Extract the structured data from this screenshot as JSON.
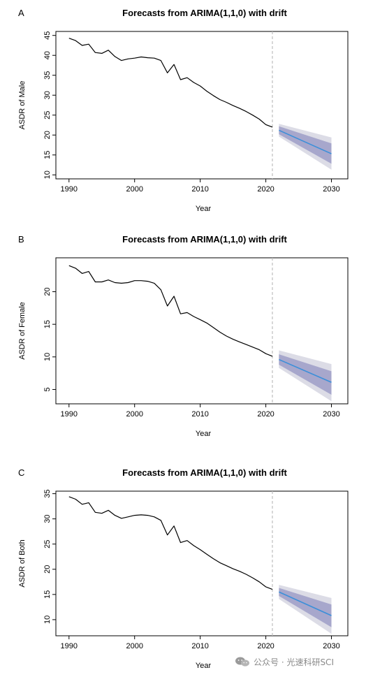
{
  "colors": {
    "history_line": "#000000",
    "forecast_line": "#3b8fd9",
    "band_95": "#dcdce6",
    "band_80": "#a7a7cc",
    "divider": "#bdbdbd"
  },
  "watermark": {
    "text": "公众号 · 光速科研SCI",
    "icon": "wechat-icon"
  },
  "chart_data": [
    {
      "panel": "A",
      "type": "line",
      "title": "Forecasts from ARIMA(1,1,0) with drift",
      "xlabel": "Year",
      "ylabel": "ASDR of Male",
      "xlim": [
        1988,
        2032.5
      ],
      "ylim": [
        9,
        46
      ],
      "xticks": [
        1990,
        2000,
        2010,
        2020,
        2030
      ],
      "yticks": [
        10,
        15,
        20,
        25,
        30,
        35,
        40,
        45
      ],
      "divider_x": 2021,
      "history": {
        "x": [
          1990,
          1991,
          1992,
          1993,
          1994,
          1995,
          1996,
          1997,
          1998,
          1999,
          2000,
          2001,
          2002,
          2003,
          2004,
          2005,
          2006,
          2007,
          2008,
          2009,
          2010,
          2011,
          2012,
          2013,
          2014,
          2015,
          2016,
          2017,
          2018,
          2019,
          2020,
          2021
        ],
        "y": [
          44.3,
          43.7,
          42.5,
          42.8,
          40.7,
          40.5,
          41.3,
          39.7,
          38.7,
          39.1,
          39.3,
          39.6,
          39.4,
          39.3,
          38.7,
          35.6,
          37.7,
          33.9,
          34.4,
          33.2,
          32.3,
          31.0,
          29.9,
          28.9,
          28.2,
          27.4,
          26.7,
          25.9,
          25.0,
          24.0,
          22.6,
          22.0
        ]
      },
      "forecast": {
        "x": [
          2022,
          2030
        ],
        "mean": [
          21.2,
          15.3
        ],
        "lo80": [
          20.2,
          12.8
        ],
        "hi80": [
          22.2,
          17.9
        ],
        "lo95": [
          19.6,
          11.3
        ],
        "hi95": [
          22.8,
          19.4
        ]
      }
    },
    {
      "panel": "B",
      "type": "line",
      "title": "Forecasts from ARIMA(1,1,0) with drift",
      "xlabel": "Year",
      "ylabel": "ASDR of Female",
      "xlim": [
        1988,
        2032.5
      ],
      "ylim": [
        2.8,
        25.2
      ],
      "xticks": [
        1990,
        2000,
        2010,
        2020,
        2030
      ],
      "yticks": [
        5,
        10,
        15,
        20
      ],
      "divider_x": 2021,
      "history": {
        "x": [
          1990,
          1991,
          1992,
          1993,
          1994,
          1995,
          1996,
          1997,
          1998,
          1999,
          2000,
          2001,
          2002,
          2003,
          2004,
          2005,
          2006,
          2007,
          2008,
          2009,
          2010,
          2011,
          2012,
          2013,
          2014,
          2015,
          2016,
          2017,
          2018,
          2019,
          2020,
          2021
        ],
        "y": [
          24.0,
          23.6,
          22.8,
          23.1,
          21.5,
          21.5,
          21.8,
          21.4,
          21.3,
          21.4,
          21.7,
          21.7,
          21.6,
          21.3,
          20.3,
          17.8,
          19.3,
          16.6,
          16.8,
          16.2,
          15.7,
          15.2,
          14.5,
          13.8,
          13.2,
          12.7,
          12.3,
          11.9,
          11.5,
          11.1,
          10.5,
          10.1
        ]
      },
      "forecast": {
        "x": [
          2022,
          2030
        ],
        "mean": [
          9.6,
          6.1
        ],
        "lo80": [
          8.8,
          4.2
        ],
        "hi80": [
          10.4,
          7.8
        ],
        "lo95": [
          8.3,
          3.2
        ],
        "hi95": [
          11.0,
          8.9
        ]
      }
    },
    {
      "panel": "C",
      "type": "line",
      "title": "Forecasts from ARIMA(1,1,0) with drift",
      "xlabel": "Year",
      "ylabel": "ASDR of Both",
      "xlim": [
        1988,
        2032.5
      ],
      "ylim": [
        6.8,
        35.5
      ],
      "xticks": [
        1990,
        2000,
        2010,
        2020,
        2030
      ],
      "yticks": [
        10,
        15,
        20,
        25,
        30,
        35
      ],
      "divider_x": 2021,
      "history": {
        "x": [
          1990,
          1991,
          1992,
          1993,
          1994,
          1995,
          1996,
          1997,
          1998,
          1999,
          2000,
          2001,
          2002,
          2003,
          2004,
          2005,
          2006,
          2007,
          2008,
          2009,
          2010,
          2011,
          2012,
          2013,
          2014,
          2015,
          2016,
          2017,
          2018,
          2019,
          2020,
          2021
        ],
        "y": [
          34.4,
          33.9,
          32.9,
          33.2,
          31.3,
          31.1,
          31.7,
          30.7,
          30.1,
          30.4,
          30.7,
          30.8,
          30.7,
          30.4,
          29.7,
          26.8,
          28.6,
          25.3,
          25.7,
          24.7,
          23.9,
          23.0,
          22.1,
          21.3,
          20.7,
          20.1,
          19.6,
          19.0,
          18.3,
          17.5,
          16.5,
          16.0
        ]
      },
      "forecast": {
        "x": [
          2022,
          2030
        ],
        "mean": [
          15.5,
          10.8
        ],
        "lo80": [
          14.7,
          8.5
        ],
        "hi80": [
          16.3,
          13.0
        ],
        "lo95": [
          14.1,
          7.2
        ],
        "hi95": [
          16.9,
          14.3
        ]
      }
    }
  ]
}
